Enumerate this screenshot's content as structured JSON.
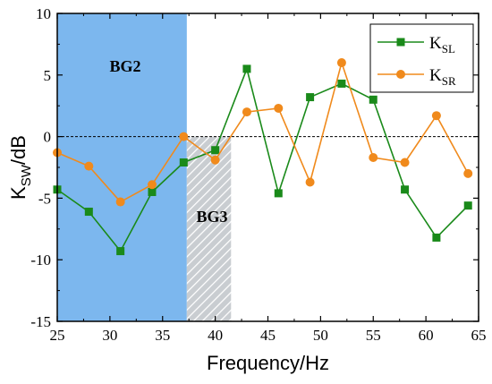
{
  "chart_data": {
    "type": "line",
    "xlabel": "Frequency/Hz",
    "ylabel_main": "K",
    "ylabel_sub": "SW",
    "ylabel_unit": "/dB",
    "xlim": [
      25,
      65
    ],
    "ylim": [
      -15,
      10
    ],
    "x_ticks": [
      "25",
      "30",
      "35",
      "40",
      "45",
      "50",
      "55",
      "60",
      "65"
    ],
    "y_ticks": [
      "10",
      "5",
      "0",
      "-5",
      "-10",
      "-15"
    ],
    "x_tick_values": [
      25,
      30,
      35,
      40,
      45,
      50,
      55,
      60,
      65
    ],
    "y_tick_values": [
      10,
      5,
      0,
      -5,
      -10,
      -15
    ],
    "reference_line_y": 0,
    "legend_position": "top-right",
    "regions": [
      {
        "label": "BG2",
        "x_range": [
          25,
          37.3
        ],
        "color": "#7cb7ee",
        "pattern": "solid"
      },
      {
        "label": "BG3",
        "x_range": [
          37.3,
          41.5
        ],
        "y_top": 0,
        "color": "#c9cdd1",
        "pattern": "hatched"
      }
    ],
    "series": [
      {
        "name_main": "K",
        "name_sub": "SL",
        "color": "#1a8a1a",
        "marker": "square",
        "x": [
          25,
          28,
          31,
          34,
          37,
          40,
          43,
          46,
          49,
          52,
          55,
          58,
          61,
          64
        ],
        "y": [
          -4.3,
          -6.1,
          -9.3,
          -4.5,
          -2.1,
          -1.1,
          5.5,
          -4.6,
          3.2,
          4.3,
          3.0,
          -4.3,
          -8.2,
          -5.6
        ]
      },
      {
        "name_main": "K",
        "name_sub": "SR",
        "color": "#f08a1c",
        "marker": "circle",
        "x": [
          25,
          28,
          31,
          34,
          37,
          40,
          43,
          46,
          49,
          52,
          55,
          58,
          61,
          64
        ],
        "y": [
          -1.3,
          -2.4,
          -5.3,
          -3.9,
          0.0,
          -1.9,
          2.0,
          2.3,
          -3.7,
          6.0,
          -1.7,
          -2.1,
          1.7,
          -3.0
        ]
      }
    ]
  }
}
